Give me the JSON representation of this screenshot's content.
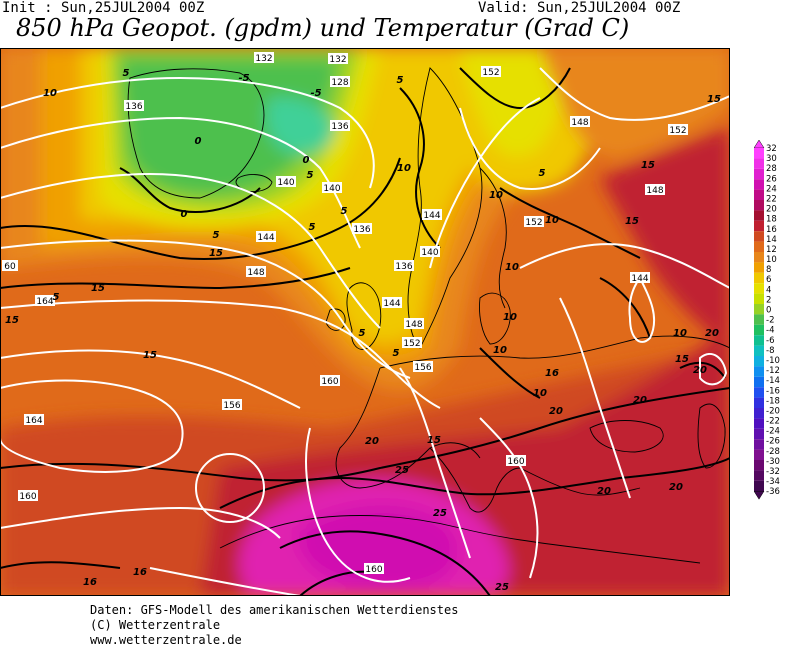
{
  "header": {
    "init": "Init : Sun,25JUL2004 00Z",
    "valid": "Valid: Sun,25JUL2004 00Z",
    "title": "850 hPa Geopot. (gpdm) und Temperatur (Grad C)"
  },
  "colors": {
    "water_base": "#e06a1a",
    "temp_0": "#4ec04e",
    "temp_2": "#96d226",
    "temp_4": "#e6e000",
    "temp_6": "#f0c800",
    "temp_8": "#f0a000",
    "temp_10": "#e8861a",
    "temp_14": "#e06a1a",
    "temp_18": "#d04a20",
    "temp_22": "#c02030",
    "temp_26": "#d0106a",
    "temp_30": "#e020b0"
  },
  "legend": {
    "ticks": [
      "32",
      "30",
      "28",
      "26",
      "24",
      "22",
      "20",
      "18",
      "16",
      "14",
      "12",
      "10",
      "8",
      "6",
      "4",
      "2",
      "0",
      "-2",
      "-4",
      "-6",
      "-8",
      "-10",
      "-12",
      "-14",
      "-16",
      "-18",
      "-20",
      "-22",
      "-24",
      "-26",
      "-28",
      "-30",
      "-32",
      "-34",
      "-36"
    ],
    "colors": [
      "#ff40ff",
      "#f030e8",
      "#e020d0",
      "#d010b0",
      "#c00c88",
      "#b00c60",
      "#a41030",
      "#c02030",
      "#d04a20",
      "#e06a1a",
      "#e8861a",
      "#f0a000",
      "#f0c800",
      "#e6e000",
      "#c8e000",
      "#96d226",
      "#4ec04e",
      "#20c060",
      "#10c090",
      "#10c0c0",
      "#10b0e0",
      "#1090f0",
      "#1070f0",
      "#2050f0",
      "#3030e0",
      "#4020d0",
      "#5010c0",
      "#6010b0",
      "#7010a0",
      "#801090",
      "#6a0870",
      "#540860",
      "#400850"
    ]
  },
  "geopotential_labels": [
    "132",
    "132",
    "128",
    "136",
    "136",
    "140",
    "140",
    "136",
    "144",
    "144",
    "136",
    "140",
    "144",
    "148",
    "148",
    "152",
    "152",
    "156",
    "160",
    "164",
    "164",
    "160",
    "148",
    "152",
    "148",
    "152",
    "156",
    "160",
    "160",
    "144",
    "60"
  ],
  "temperature_labels": [
    "10",
    "5",
    "-5",
    "-5",
    "0",
    "0",
    "0",
    "5",
    "5",
    "5",
    "10",
    "10",
    "10",
    "10",
    "15",
    "15",
    "15",
    "15",
    "15",
    "15",
    "15",
    "15",
    "20",
    "20",
    "20",
    "20",
    "20",
    "20",
    "25",
    "25",
    "25",
    "5",
    "5",
    "5",
    "5",
    "10",
    "10",
    "15",
    "16",
    "16",
    "16",
    "20",
    "5",
    "5",
    "10",
    "10"
  ],
  "footer": {
    "line1": "Daten: GFS-Modell des amerikanischen Wetterdienstes",
    "line2": "(C) Wetterzentrale",
    "line3": "www.wetterzentrale.de"
  }
}
